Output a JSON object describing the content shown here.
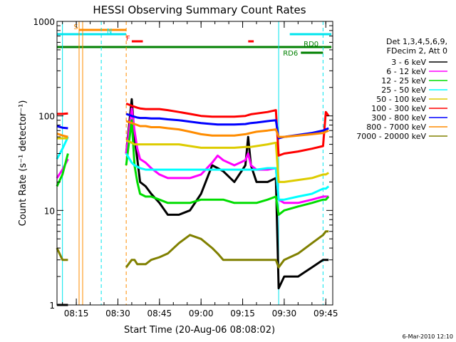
{
  "chart_data": {
    "type": "line",
    "title": "HESSI Observing Summary Count Rates",
    "xlabel": "Start Time (20-Aug-06 08:08:02)",
    "ylabel": "Count Rate (s⁻¹ detector⁻¹)",
    "yscale": "log",
    "ylim": [
      1,
      1000
    ],
    "y_ticks": [
      "1",
      "10",
      "100",
      "1000"
    ],
    "x_ticks": [
      "08:15",
      "08:30",
      "08:45",
      "09:00",
      "09:15",
      "09:30",
      "09:45"
    ],
    "xlim": [
      "08:08:02",
      "09:47:30"
    ],
    "footer": "6-Mar-2010 12:10",
    "legend": {
      "position": "right",
      "header": [
        "Det 1,3,4,5,6,9,",
        "FDecim 2, Att 0"
      ]
    },
    "flags": [
      {
        "label": "S",
        "color": "#ff8c00",
        "start": "08:16",
        "end": "08:33"
      },
      {
        "label": "N",
        "color": "#00e5ee",
        "start": "08:08",
        "end": "08:33"
      },
      {
        "label": "F",
        "color": "#ff0000",
        "start": "08:35",
        "end": "08:39"
      },
      {
        "label": "",
        "color": "#ff0000",
        "start": "09:17",
        "end": "09:19"
      },
      {
        "label": "",
        "color": "#00e5ee",
        "start": "09:32",
        "end": "09:47"
      },
      {
        "label": "RD0",
        "color": "#008000",
        "start": "08:08",
        "end": "09:47"
      },
      {
        "label": "RD6",
        "color": "#008000",
        "start": "09:36",
        "end": "09:44"
      }
    ],
    "vlines": [
      {
        "time": "08:10",
        "color": "#00e5ee",
        "style": "solid"
      },
      {
        "time": "08:16",
        "color": "#ff8c00",
        "style": "solid"
      },
      {
        "time": "08:16",
        "color": "#ff8c00",
        "style": "solid"
      },
      {
        "time": "08:24",
        "color": "#00e5ee",
        "style": "dashed"
      },
      {
        "time": "08:33",
        "color": "#ff8c00",
        "style": "dashed"
      },
      {
        "time": "09:28",
        "color": "#00e5ee",
        "style": "solid"
      },
      {
        "time": "09:44",
        "color": "#00e5ee",
        "style": "dashed"
      }
    ],
    "gaps": [
      [
        "08:12",
        "08:32"
      ]
    ],
    "x": [
      "08:08",
      "08:10",
      "08:12",
      "08:33",
      "08:35",
      "08:36",
      "08:37",
      "08:38",
      "08:40",
      "08:42",
      "08:45",
      "08:48",
      "08:52",
      "08:56",
      "09:00",
      "09:04",
      "09:06",
      "09:08",
      "09:12",
      "09:16",
      "09:17",
      "09:18",
      "09:20",
      "09:24",
      "09:27",
      "09:28",
      "09:30",
      "09:35",
      "09:40",
      "09:44",
      "09:45",
      "09:46"
    ],
    "series": [
      {
        "name": "3 - 6 keV",
        "color": "#000000",
        "values": [
          1,
          1,
          1,
          40,
          150,
          60,
          35,
          20,
          18,
          15,
          12,
          9,
          9,
          10,
          15,
          30,
          28,
          26,
          20,
          30,
          60,
          30,
          20,
          20,
          22,
          1.5,
          2,
          2,
          2.5,
          3,
          3,
          3
        ]
      },
      {
        "name": "6 - 12 keV",
        "color": "#ff00ff",
        "values": [
          22,
          27,
          35,
          40,
          120,
          70,
          45,
          35,
          32,
          28,
          24,
          22,
          22,
          22,
          24,
          32,
          38,
          34,
          30,
          34,
          40,
          30,
          27,
          27,
          28,
          13,
          12,
          12,
          13,
          14,
          14,
          14
        ]
      },
      {
        "name": "12 - 25 keV",
        "color": "#00dd00",
        "values": [
          18,
          24,
          40,
          30,
          90,
          30,
          20,
          15,
          14,
          14,
          13,
          12,
          12,
          12,
          13,
          13,
          13,
          13,
          12,
          12,
          12,
          12,
          12,
          13,
          14,
          9,
          10,
          11,
          12,
          13,
          13,
          14
        ]
      },
      {
        "name": "25 - 50 keV",
        "color": "#00ffff",
        "values": [
          35,
          45,
          60,
          40,
          32,
          30,
          29,
          28,
          27,
          27,
          27,
          27,
          27,
          27,
          27,
          27,
          27,
          27,
          27,
          27,
          27,
          27,
          27,
          28,
          28,
          13,
          13,
          14,
          15,
          17,
          17,
          18
        ]
      },
      {
        "name": "50 - 100 keV",
        "color": "#ddcc00",
        "values": [
          58,
          58,
          58,
          55,
          52,
          50,
          50,
          50,
          50,
          50,
          50,
          50,
          50,
          48,
          46,
          46,
          46,
          46,
          46,
          47,
          47,
          47,
          48,
          50,
          52,
          20,
          20,
          21,
          22,
          24,
          24,
          25
        ]
      },
      {
        "name": "100 - 300 keV",
        "color": "#ff0000",
        "values": [
          105,
          105,
          106,
          135,
          128,
          125,
          122,
          120,
          118,
          118,
          118,
          115,
          110,
          105,
          100,
          98,
          98,
          98,
          98,
          100,
          102,
          104,
          106,
          110,
          115,
          38,
          40,
          42,
          45,
          48,
          110,
          100
        ]
      },
      {
        "name": "300 - 800 keV",
        "color": "#0000ff",
        "values": [
          78,
          75,
          74,
          105,
          100,
          98,
          96,
          95,
          95,
          94,
          94,
          92,
          90,
          87,
          84,
          82,
          81,
          81,
          81,
          82,
          83,
          84,
          85,
          88,
          90,
          58,
          60,
          63,
          66,
          70,
          72,
          74
        ]
      },
      {
        "name": "800 - 7000 keV",
        "color": "#ff8c00",
        "values": [
          65,
          62,
          60,
          88,
          84,
          82,
          80,
          78,
          78,
          76,
          76,
          74,
          72,
          68,
          64,
          62,
          62,
          62,
          62,
          64,
          65,
          66,
          68,
          70,
          72,
          60,
          60,
          62,
          64,
          66,
          68,
          70
        ]
      },
      {
        "name": "7000 - 20000 keV",
        "color": "#808000",
        "values": [
          4,
          3,
          3,
          2.5,
          3,
          3,
          2.7,
          2.7,
          2.7,
          3,
          3.2,
          3.5,
          4.5,
          5.5,
          5,
          4,
          3.5,
          3,
          3,
          3,
          3,
          3,
          3,
          3,
          3,
          2.5,
          3,
          3.5,
          4.5,
          5.5,
          6,
          6
        ]
      }
    ]
  }
}
